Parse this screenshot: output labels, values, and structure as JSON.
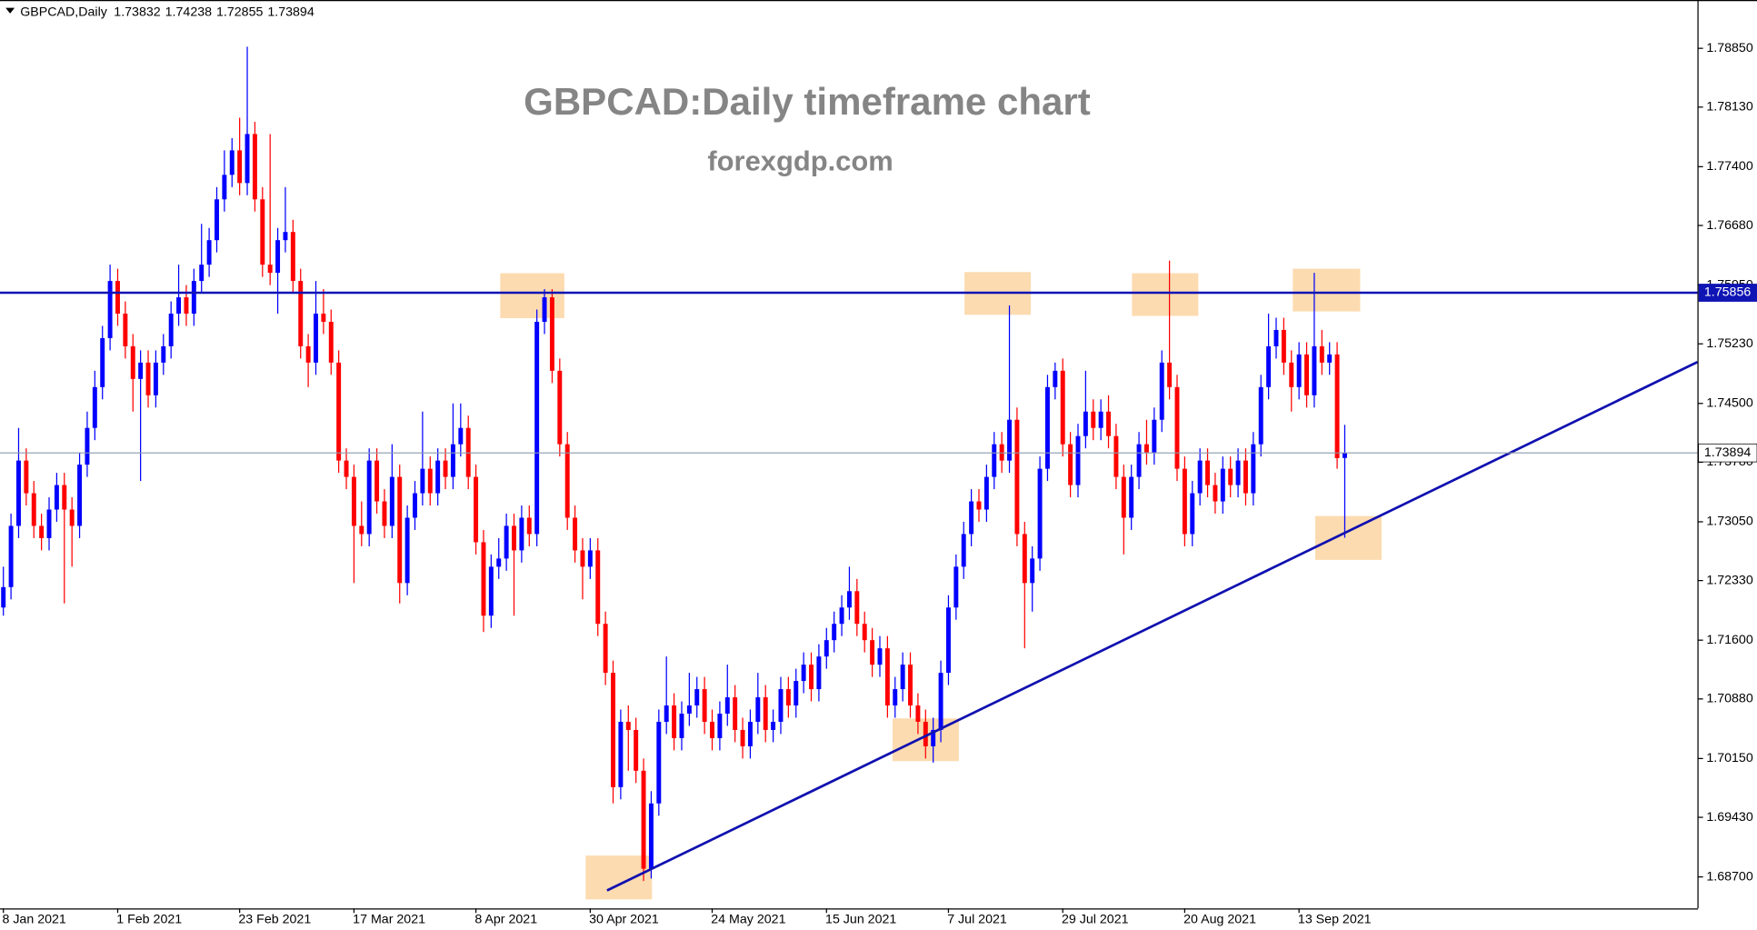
{
  "chart_data": {
    "type": "candlestick",
    "symbol": "GBPCAD,Daily",
    "title": "GBPCAD:Daily timeframe chart",
    "subtitle": "forexgdp.com",
    "up_color": "#0000ff",
    "down_color": "#ff0000",
    "grid": false,
    "resistance": 1.75856,
    "resistance_color": "#0f14b4",
    "ylim": [
      1.68314,
      1.79442
    ],
    "yticks": [
      {
        "value": 1.7885,
        "label": "1.78850"
      },
      {
        "value": 1.7813,
        "label": "1.78130"
      },
      {
        "value": 1.774,
        "label": "1.77400"
      },
      {
        "value": 1.7668,
        "label": "1.76680"
      },
      {
        "value": 1.7595,
        "label": "1.75950"
      },
      {
        "value": 1.7523,
        "label": "1.75230"
      },
      {
        "value": 1.745,
        "label": "1.74500"
      },
      {
        "value": 1.7378,
        "label": "1.73780"
      },
      {
        "value": 1.7305,
        "label": "1.73050"
      },
      {
        "value": 1.7233,
        "label": "1.72330"
      },
      {
        "value": 1.716,
        "label": "1.71600"
      },
      {
        "value": 1.7088,
        "label": "1.70880"
      },
      {
        "value": 1.7015,
        "label": "1.70150"
      },
      {
        "value": 1.6943,
        "label": "1.69430"
      },
      {
        "value": 1.687,
        "label": "1.68700"
      }
    ],
    "categories": [
      "8 Jan 2021",
      null,
      null,
      null,
      null,
      null,
      null,
      null,
      null,
      null,
      null,
      null,
      null,
      null,
      null,
      "1 Feb 2021",
      null,
      null,
      null,
      null,
      null,
      null,
      null,
      null,
      null,
      null,
      null,
      null,
      null,
      null,
      null,
      "23 Feb 2021",
      null,
      null,
      null,
      null,
      null,
      null,
      null,
      null,
      null,
      null,
      null,
      null,
      null,
      null,
      "17 Mar 2021",
      null,
      null,
      null,
      null,
      null,
      null,
      null,
      null,
      null,
      null,
      null,
      null,
      null,
      null,
      null,
      "8 Apr 2021",
      null,
      null,
      null,
      null,
      null,
      null,
      null,
      null,
      null,
      null,
      null,
      null,
      null,
      null,
      "30 Apr 2021",
      null,
      null,
      null,
      null,
      null,
      null,
      null,
      null,
      null,
      null,
      null,
      null,
      null,
      null,
      null,
      "24 May 2021",
      null,
      null,
      null,
      null,
      null,
      null,
      null,
      null,
      null,
      null,
      null,
      null,
      null,
      null,
      "15 Jun 2021",
      null,
      null,
      null,
      null,
      null,
      null,
      null,
      null,
      null,
      null,
      null,
      null,
      null,
      null,
      null,
      "7 Jul 2021",
      null,
      null,
      null,
      null,
      null,
      null,
      null,
      null,
      null,
      null,
      null,
      null,
      null,
      null,
      "29 Jul 2021",
      null,
      null,
      null,
      null,
      null,
      null,
      null,
      null,
      null,
      null,
      null,
      null,
      null,
      null,
      null,
      "20 Aug 2021",
      null,
      null,
      null,
      null,
      null,
      null,
      null,
      null,
      null,
      null,
      null,
      null,
      null,
      null,
      "13 Sep 2021",
      null,
      null,
      null,
      null,
      null,
      null
    ],
    "ohlc": [
      [
        1.72,
        1.725,
        1.719,
        1.7225
      ],
      [
        1.7225,
        1.7315,
        1.721,
        1.73
      ],
      [
        1.73,
        1.742,
        1.7285,
        1.738
      ],
      [
        1.738,
        1.7395,
        1.7325,
        1.734
      ],
      [
        1.734,
        1.7355,
        1.7285,
        1.73
      ],
      [
        1.73,
        1.7315,
        1.727,
        1.7285
      ],
      [
        1.7285,
        1.7335,
        1.727,
        1.732
      ],
      [
        1.732,
        1.7365,
        1.7305,
        1.735
      ],
      [
        1.735,
        1.7365,
        1.7205,
        1.732
      ],
      [
        1.732,
        1.7335,
        1.725,
        1.73
      ],
      [
        1.73,
        1.739,
        1.7285,
        1.7375
      ],
      [
        1.7375,
        1.744,
        1.736,
        1.742
      ],
      [
        1.742,
        1.749,
        1.7405,
        1.747
      ],
      [
        1.747,
        1.7545,
        1.7455,
        1.753
      ],
      [
        1.753,
        1.762,
        1.7515,
        1.76
      ],
      [
        1.76,
        1.7615,
        1.7545,
        1.756
      ],
      [
        1.756,
        1.7575,
        1.7505,
        1.752
      ],
      [
        1.752,
        1.7535,
        1.744,
        1.748
      ],
      [
        1.748,
        1.7515,
        1.7355,
        1.75
      ],
      [
        1.75,
        1.7515,
        1.7445,
        1.746
      ],
      [
        1.746,
        1.7515,
        1.7445,
        1.75
      ],
      [
        1.75,
        1.7535,
        1.7485,
        1.752
      ],
      [
        1.752,
        1.7575,
        1.7505,
        1.756
      ],
      [
        1.756,
        1.762,
        1.7545,
        1.758
      ],
      [
        1.758,
        1.7595,
        1.7545,
        1.756
      ],
      [
        1.756,
        1.7615,
        1.7545,
        1.76
      ],
      [
        1.76,
        1.767,
        1.7585,
        1.762
      ],
      [
        1.762,
        1.7665,
        1.7605,
        1.765
      ],
      [
        1.765,
        1.7715,
        1.7635,
        1.77
      ],
      [
        1.77,
        1.776,
        1.7685,
        1.773
      ],
      [
        1.773,
        1.7775,
        1.7715,
        1.776
      ],
      [
        1.776,
        1.78,
        1.7705,
        1.772
      ],
      [
        1.772,
        1.7887,
        1.7705,
        1.778
      ],
      [
        1.778,
        1.7795,
        1.7685,
        1.77
      ],
      [
        1.77,
        1.7715,
        1.7605,
        1.762
      ],
      [
        1.762,
        1.778,
        1.7595,
        1.761
      ],
      [
        1.761,
        1.7665,
        1.756,
        1.765
      ],
      [
        1.765,
        1.7715,
        1.7635,
        1.766
      ],
      [
        1.766,
        1.7675,
        1.7585,
        1.76
      ],
      [
        1.76,
        1.7615,
        1.7505,
        1.752
      ],
      [
        1.752,
        1.7535,
        1.747,
        1.75
      ],
      [
        1.75,
        1.76,
        1.7485,
        1.756
      ],
      [
        1.756,
        1.759,
        1.7535,
        1.755
      ],
      [
        1.755,
        1.7565,
        1.7485,
        1.75
      ],
      [
        1.75,
        1.7515,
        1.7365,
        1.738
      ],
      [
        1.738,
        1.7395,
        1.7345,
        1.736
      ],
      [
        1.736,
        1.7375,
        1.723,
        1.73
      ],
      [
        1.73,
        1.733,
        1.7275,
        1.729
      ],
      [
        1.729,
        1.7395,
        1.7275,
        1.738
      ],
      [
        1.738,
        1.7395,
        1.7315,
        1.733
      ],
      [
        1.733,
        1.7345,
        1.7285,
        1.73
      ],
      [
        1.73,
        1.74,
        1.7285,
        1.736
      ],
      [
        1.736,
        1.7375,
        1.7205,
        1.723
      ],
      [
        1.723,
        1.7325,
        1.7215,
        1.731
      ],
      [
        1.731,
        1.7355,
        1.7295,
        1.734
      ],
      [
        1.734,
        1.744,
        1.7325,
        1.737
      ],
      [
        1.737,
        1.7385,
        1.7325,
        1.734
      ],
      [
        1.734,
        1.7395,
        1.7325,
        1.738
      ],
      [
        1.738,
        1.7395,
        1.7345,
        1.736
      ],
      [
        1.736,
        1.745,
        1.7345,
        1.74
      ],
      [
        1.74,
        1.745,
        1.7385,
        1.742
      ],
      [
        1.742,
        1.7435,
        1.7345,
        1.736
      ],
      [
        1.736,
        1.7375,
        1.7265,
        1.728
      ],
      [
        1.728,
        1.7295,
        1.717,
        1.719
      ],
      [
        1.719,
        1.7265,
        1.7175,
        1.725
      ],
      [
        1.725,
        1.7285,
        1.7235,
        1.726
      ],
      [
        1.726,
        1.7315,
        1.7245,
        1.73
      ],
      [
        1.73,
        1.7315,
        1.719,
        1.727
      ],
      [
        1.727,
        1.7325,
        1.7255,
        1.731
      ],
      [
        1.731,
        1.7325,
        1.7275,
        1.729
      ],
      [
        1.729,
        1.7565,
        1.7275,
        1.755
      ],
      [
        1.755,
        1.759,
        1.7535,
        1.758
      ],
      [
        1.758,
        1.759,
        1.7475,
        1.749
      ],
      [
        1.749,
        1.7505,
        1.7385,
        1.74
      ],
      [
        1.74,
        1.7415,
        1.7295,
        1.731
      ],
      [
        1.731,
        1.7325,
        1.7255,
        1.727
      ],
      [
        1.727,
        1.7285,
        1.721,
        1.725
      ],
      [
        1.725,
        1.7285,
        1.7235,
        1.727
      ],
      [
        1.727,
        1.7285,
        1.7165,
        1.718
      ],
      [
        1.718,
        1.7195,
        1.7105,
        1.712
      ],
      [
        1.712,
        1.7135,
        1.696,
        1.698
      ],
      [
        1.698,
        1.7075,
        1.6965,
        1.706
      ],
      [
        1.706,
        1.708,
        1.7,
        1.705
      ],
      [
        1.705,
        1.7065,
        1.6985,
        1.7
      ],
      [
        1.7,
        1.7015,
        1.6865,
        1.688
      ],
      [
        1.688,
        1.6975,
        1.6868,
        1.696
      ],
      [
        1.696,
        1.7075,
        1.6945,
        1.706
      ],
      [
        1.706,
        1.714,
        1.7045,
        1.708
      ],
      [
        1.708,
        1.7095,
        1.7025,
        1.704
      ],
      [
        1.704,
        1.7085,
        1.7025,
        1.707
      ],
      [
        1.707,
        1.712,
        1.7055,
        1.708
      ],
      [
        1.708,
        1.7115,
        1.7065,
        1.71
      ],
      [
        1.71,
        1.7115,
        1.7045,
        1.706
      ],
      [
        1.706,
        1.7075,
        1.7025,
        1.704
      ],
      [
        1.704,
        1.7085,
        1.7025,
        1.707
      ],
      [
        1.707,
        1.713,
        1.7055,
        1.709
      ],
      [
        1.709,
        1.7105,
        1.7035,
        1.705
      ],
      [
        1.705,
        1.7065,
        1.7015,
        1.703
      ],
      [
        1.703,
        1.7075,
        1.7015,
        1.706
      ],
      [
        1.706,
        1.712,
        1.7045,
        1.709
      ],
      [
        1.709,
        1.7105,
        1.7035,
        1.705
      ],
      [
        1.705,
        1.7075,
        1.7035,
        1.706
      ],
      [
        1.706,
        1.7115,
        1.7045,
        1.71
      ],
      [
        1.71,
        1.7115,
        1.7065,
        1.708
      ],
      [
        1.708,
        1.7125,
        1.7065,
        1.711
      ],
      [
        1.711,
        1.7145,
        1.7095,
        1.713
      ],
      [
        1.713,
        1.7145,
        1.7085,
        1.71
      ],
      [
        1.71,
        1.7155,
        1.7085,
        1.714
      ],
      [
        1.714,
        1.7175,
        1.7125,
        1.716
      ],
      [
        1.716,
        1.7195,
        1.7145,
        1.718
      ],
      [
        1.718,
        1.7215,
        1.7165,
        1.72
      ],
      [
        1.72,
        1.725,
        1.7185,
        1.722
      ],
      [
        1.722,
        1.7235,
        1.7165,
        1.718
      ],
      [
        1.718,
        1.7195,
        1.7145,
        1.716
      ],
      [
        1.716,
        1.7175,
        1.7115,
        1.713
      ],
      [
        1.713,
        1.7165,
        1.7115,
        1.715
      ],
      [
        1.715,
        1.7165,
        1.7065,
        1.708
      ],
      [
        1.708,
        1.7115,
        1.7065,
        1.71
      ],
      [
        1.71,
        1.7145,
        1.7085,
        1.713
      ],
      [
        1.713,
        1.7145,
        1.7065,
        1.708
      ],
      [
        1.708,
        1.7095,
        1.7045,
        1.706
      ],
      [
        1.706,
        1.7075,
        1.7015,
        1.703
      ],
      [
        1.703,
        1.7065,
        1.701,
        1.705
      ],
      [
        1.705,
        1.7135,
        1.7035,
        1.712
      ],
      [
        1.712,
        1.7215,
        1.7105,
        1.72
      ],
      [
        1.72,
        1.7265,
        1.7185,
        1.725
      ],
      [
        1.725,
        1.7305,
        1.7235,
        1.729
      ],
      [
        1.729,
        1.7345,
        1.7275,
        1.733
      ],
      [
        1.733,
        1.7345,
        1.7305,
        1.732
      ],
      [
        1.732,
        1.7375,
        1.7305,
        1.736
      ],
      [
        1.736,
        1.7415,
        1.7345,
        1.74
      ],
      [
        1.74,
        1.7415,
        1.7365,
        1.738
      ],
      [
        1.738,
        1.757,
        1.7365,
        1.743
      ],
      [
        1.743,
        1.7445,
        1.7275,
        1.729
      ],
      [
        1.729,
        1.7305,
        1.715,
        1.723
      ],
      [
        1.723,
        1.7275,
        1.7195,
        1.726
      ],
      [
        1.726,
        1.7385,
        1.7245,
        1.737
      ],
      [
        1.737,
        1.7485,
        1.7355,
        1.747
      ],
      [
        1.747,
        1.75,
        1.7455,
        1.749
      ],
      [
        1.749,
        1.7505,
        1.7385,
        1.74
      ],
      [
        1.74,
        1.7415,
        1.7335,
        1.735
      ],
      [
        1.735,
        1.7425,
        1.7335,
        1.741
      ],
      [
        1.741,
        1.749,
        1.7395,
        1.744
      ],
      [
        1.744,
        1.7455,
        1.7405,
        1.742
      ],
      [
        1.742,
        1.7455,
        1.7405,
        1.744
      ],
      [
        1.744,
        1.746,
        1.7395,
        1.741
      ],
      [
        1.741,
        1.7425,
        1.7345,
        1.736
      ],
      [
        1.736,
        1.7375,
        1.7265,
        1.731
      ],
      [
        1.731,
        1.7375,
        1.7295,
        1.736
      ],
      [
        1.736,
        1.7415,
        1.7345,
        1.74
      ],
      [
        1.74,
        1.743,
        1.7375,
        1.739
      ],
      [
        1.739,
        1.7445,
        1.7375,
        1.743
      ],
      [
        1.743,
        1.7515,
        1.7415,
        1.75
      ],
      [
        1.75,
        1.7625,
        1.7455,
        1.747
      ],
      [
        1.747,
        1.7485,
        1.7355,
        1.737
      ],
      [
        1.737,
        1.7385,
        1.7275,
        1.729
      ],
      [
        1.729,
        1.7355,
        1.7275,
        1.734
      ],
      [
        1.734,
        1.7395,
        1.7325,
        1.738
      ],
      [
        1.738,
        1.7395,
        1.7335,
        1.735
      ],
      [
        1.735,
        1.7365,
        1.7315,
        1.733
      ],
      [
        1.733,
        1.7385,
        1.7315,
        1.737
      ],
      [
        1.737,
        1.7385,
        1.7335,
        1.735
      ],
      [
        1.735,
        1.7395,
        1.7335,
        1.738
      ],
      [
        1.738,
        1.7395,
        1.7325,
        1.734
      ],
      [
        1.734,
        1.7415,
        1.7325,
        1.74
      ],
      [
        1.74,
        1.7485,
        1.7385,
        1.747
      ],
      [
        1.747,
        1.756,
        1.7455,
        1.752
      ],
      [
        1.752,
        1.7555,
        1.7505,
        1.754
      ],
      [
        1.754,
        1.7555,
        1.7485,
        1.75
      ],
      [
        1.75,
        1.7515,
        1.744,
        1.747
      ],
      [
        1.747,
        1.7525,
        1.7455,
        1.751
      ],
      [
        1.751,
        1.7525,
        1.7445,
        1.746
      ],
      [
        1.746,
        1.761,
        1.7445,
        1.752
      ],
      [
        1.752,
        1.754,
        1.7485,
        1.75
      ],
      [
        1.75,
        1.7525,
        1.7485,
        1.751
      ],
      [
        1.751,
        1.7525,
        1.737,
        1.7383
      ],
      [
        1.73832,
        1.74238,
        1.72855,
        1.73894
      ]
    ]
  }
}
